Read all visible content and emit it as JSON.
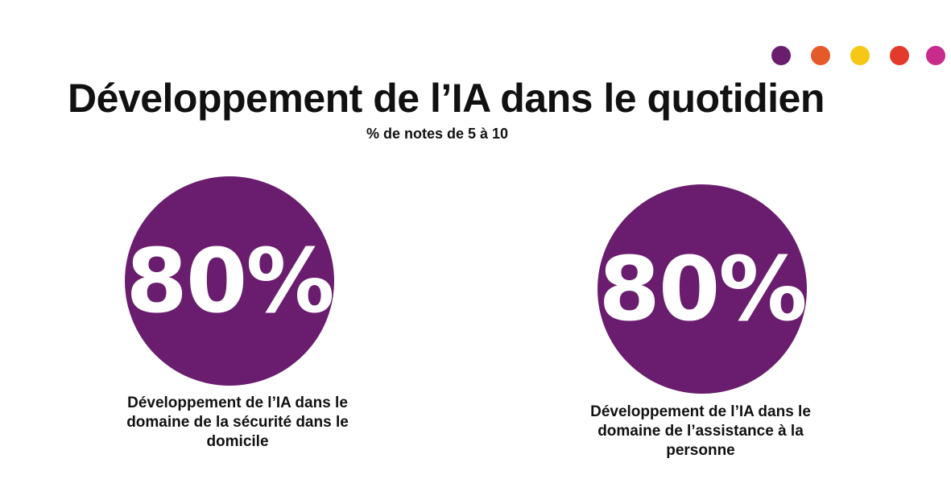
{
  "header": {
    "title": "Développement de l’IA dans le quotidien",
    "subtitle": "% de notes de 5 à 10"
  },
  "decorative_dots": {
    "colors": [
      "#6a1d6e",
      "#e55a2b",
      "#f4c814",
      "#e23a2b",
      "#c72b8c"
    ]
  },
  "stats": [
    {
      "value": "80%",
      "caption": "Développement de l’IA dans le domaine de la sécurité dans le domicile",
      "color": "#6a1d6e"
    },
    {
      "value": "80%",
      "caption": "Développement de l’IA dans le domaine de l’assistance à la personne",
      "color": "#6a1d6e"
    }
  ]
}
